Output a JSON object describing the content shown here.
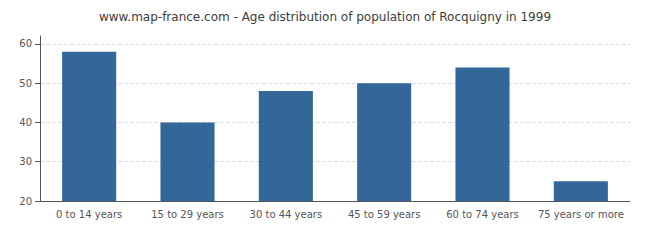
{
  "chart_data": {
    "type": "bar",
    "title": "www.map-france.com - Age distribution of population of Rocquigny in 1999",
    "categories": [
      "0 to 14 years",
      "15 to 29 years",
      "30 to 44 years",
      "45 to 59 years",
      "60 to 74 years",
      "75 years or more"
    ],
    "values": [
      58,
      40,
      48,
      50,
      54,
      25
    ],
    "color": "#336699",
    "ylim": [
      20,
      62
    ],
    "yticks": [
      20,
      30,
      40,
      50,
      60
    ],
    "grid": true
  }
}
